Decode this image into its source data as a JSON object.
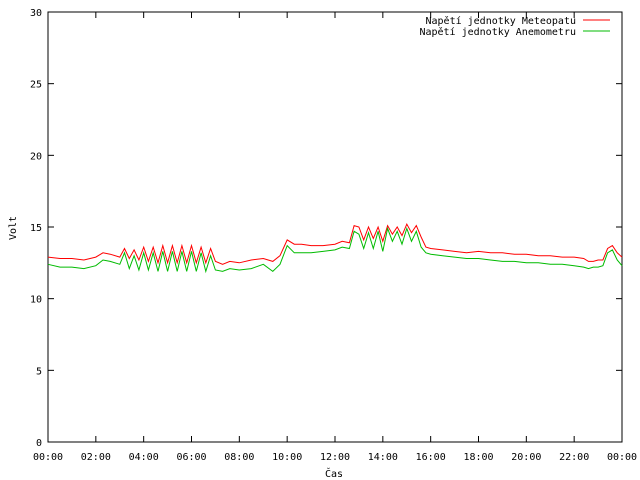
{
  "chart_data": {
    "type": "line",
    "title": "",
    "xlabel": "Čas",
    "ylabel": "Volt",
    "ylim": [
      0,
      30
    ],
    "xlim_hours": [
      0,
      24
    ],
    "grid": false,
    "legend_position": "top-right",
    "y_ticks": [
      "0",
      "5",
      "10",
      "15",
      "20",
      "25",
      "30"
    ],
    "x_ticks": [
      "00:00",
      "02:00",
      "04:00",
      "06:00",
      "08:00",
      "10:00",
      "12:00",
      "14:00",
      "16:00",
      "18:00",
      "20:00",
      "22:00",
      "00:00"
    ],
    "x_unit": "hours",
    "series": [
      {
        "name": "Napětí jednotky Meteopatu",
        "color": "#ff0000",
        "x": [
          0,
          0.5,
          1.0,
          1.5,
          2.0,
          2.3,
          2.6,
          3.0,
          3.2,
          3.4,
          3.6,
          3.8,
          4.0,
          4.2,
          4.4,
          4.6,
          4.8,
          5.0,
          5.2,
          5.4,
          5.6,
          5.8,
          6.0,
          6.2,
          6.4,
          6.6,
          6.8,
          7.0,
          7.3,
          7.6,
          8.0,
          8.5,
          9.0,
          9.4,
          9.7,
          10.0,
          10.3,
          10.6,
          11.0,
          11.5,
          12.0,
          12.3,
          12.6,
          12.8,
          13.0,
          13.2,
          13.4,
          13.6,
          13.8,
          14.0,
          14.2,
          14.4,
          14.6,
          14.8,
          15.0,
          15.2,
          15.4,
          15.6,
          15.8,
          16.0,
          16.5,
          17.0,
          17.5,
          18.0,
          18.5,
          19.0,
          19.5,
          20.0,
          20.5,
          21.0,
          21.5,
          22.0,
          22.4,
          22.6,
          22.8,
          23.0,
          23.2,
          23.4,
          23.6,
          23.8,
          24.0
        ],
        "y": [
          12.9,
          12.8,
          12.8,
          12.7,
          12.9,
          13.2,
          13.1,
          12.9,
          13.5,
          12.8,
          13.4,
          12.7,
          13.6,
          12.6,
          13.6,
          12.5,
          13.7,
          12.5,
          13.7,
          12.5,
          13.7,
          12.5,
          13.7,
          12.5,
          13.6,
          12.5,
          13.5,
          12.6,
          12.4,
          12.6,
          12.5,
          12.7,
          12.8,
          12.6,
          13.0,
          14.1,
          13.8,
          13.8,
          13.7,
          13.7,
          13.8,
          14.0,
          13.9,
          15.1,
          15.0,
          14.1,
          15.0,
          14.2,
          15.0,
          14.0,
          15.1,
          14.5,
          15.0,
          14.4,
          15.2,
          14.6,
          15.1,
          14.3,
          13.6,
          13.5,
          13.4,
          13.3,
          13.2,
          13.3,
          13.2,
          13.2,
          13.1,
          13.1,
          13.0,
          13.0,
          12.9,
          12.9,
          12.8,
          12.6,
          12.6,
          12.7,
          12.7,
          13.5,
          13.7,
          13.2,
          12.9
        ]
      },
      {
        "name": "Napětí jednotky Anemometru",
        "color": "#00bb00",
        "x": [
          0,
          0.5,
          1.0,
          1.5,
          2.0,
          2.3,
          2.6,
          3.0,
          3.2,
          3.4,
          3.6,
          3.8,
          4.0,
          4.2,
          4.4,
          4.6,
          4.8,
          5.0,
          5.2,
          5.4,
          5.6,
          5.8,
          6.0,
          6.2,
          6.4,
          6.6,
          6.8,
          7.0,
          7.3,
          7.6,
          8.0,
          8.5,
          9.0,
          9.4,
          9.7,
          10.0,
          10.3,
          10.6,
          11.0,
          11.5,
          12.0,
          12.3,
          12.6,
          12.8,
          13.0,
          13.2,
          13.4,
          13.6,
          13.8,
          14.0,
          14.2,
          14.4,
          14.6,
          14.8,
          15.0,
          15.2,
          15.4,
          15.6,
          15.8,
          16.0,
          16.5,
          17.0,
          17.5,
          18.0,
          18.5,
          19.0,
          19.5,
          20.0,
          20.5,
          21.0,
          21.5,
          22.0,
          22.4,
          22.6,
          22.8,
          23.0,
          23.2,
          23.4,
          23.6,
          23.8,
          24.0
        ],
        "y": [
          12.4,
          12.2,
          12.2,
          12.1,
          12.3,
          12.7,
          12.6,
          12.4,
          13.2,
          12.1,
          13.0,
          12.0,
          13.2,
          12.0,
          13.2,
          11.9,
          13.3,
          11.9,
          13.3,
          11.9,
          13.3,
          11.9,
          13.3,
          11.9,
          13.2,
          11.9,
          13.0,
          12.0,
          11.9,
          12.1,
          12.0,
          12.1,
          12.4,
          11.9,
          12.4,
          13.7,
          13.2,
          13.2,
          13.2,
          13.3,
          13.4,
          13.6,
          13.5,
          14.7,
          14.5,
          13.5,
          14.6,
          13.5,
          14.7,
          13.3,
          14.9,
          14.0,
          14.7,
          13.8,
          14.9,
          14.0,
          14.7,
          13.6,
          13.2,
          13.1,
          13.0,
          12.9,
          12.8,
          12.8,
          12.7,
          12.6,
          12.6,
          12.5,
          12.5,
          12.4,
          12.4,
          12.3,
          12.2,
          12.1,
          12.2,
          12.2,
          12.3,
          13.2,
          13.4,
          12.7,
          12.3
        ]
      }
    ]
  }
}
